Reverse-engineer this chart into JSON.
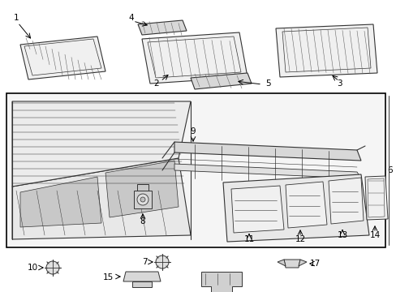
{
  "bg_outer": "#f5f5f5",
  "bg_white": "#ffffff",
  "bg_box": "#f0f0f0",
  "black": "#000000",
  "dark_gray": "#333333",
  "mid_gray": "#888888",
  "light_gray": "#cccccc",
  "panel_fill": "#e8e8e8",
  "panel_stroke": "#444444",
  "hatch_color": "#666666"
}
